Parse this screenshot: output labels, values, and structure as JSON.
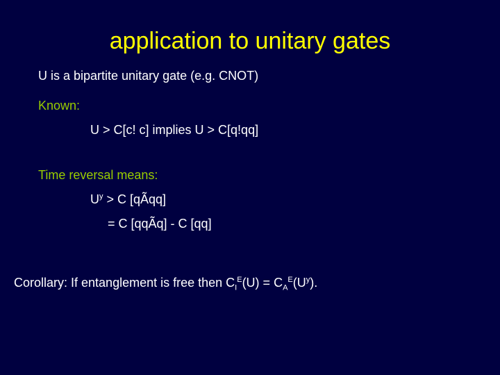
{
  "slide": {
    "background_color": "#000040",
    "title_color": "#ffff00",
    "text_color": "#ffffff",
    "accent_color": "#99cc00",
    "title_fontsize": 34,
    "body_fontsize": 18,
    "font_family": "Verdana",
    "title": "application to unitary gates",
    "line1": "U is a bipartite unitary gate (e.g. CNOT)",
    "known_label": "Known:",
    "known_line": "U > C[c! c]  implies U > C[q!qq]",
    "reversal_label": "Time reversal means:",
    "rev_line1_pre": "U",
    "rev_line1_sup": "y",
    "rev_line1_post": " > C [qÃqq]",
    "rev_line2": "= C [qqÃq] - C [qq]",
    "corollary_pre": "Corollary: If entanglement is free then C",
    "c1_sub": "I",
    "c1_sup": "E",
    "corollary_mid": "(U) = C",
    "c2_sub": "A",
    "c2_sup": "E",
    "corollary_post1": "(U",
    "corollary_sup": "y",
    "corollary_post2": ")."
  }
}
